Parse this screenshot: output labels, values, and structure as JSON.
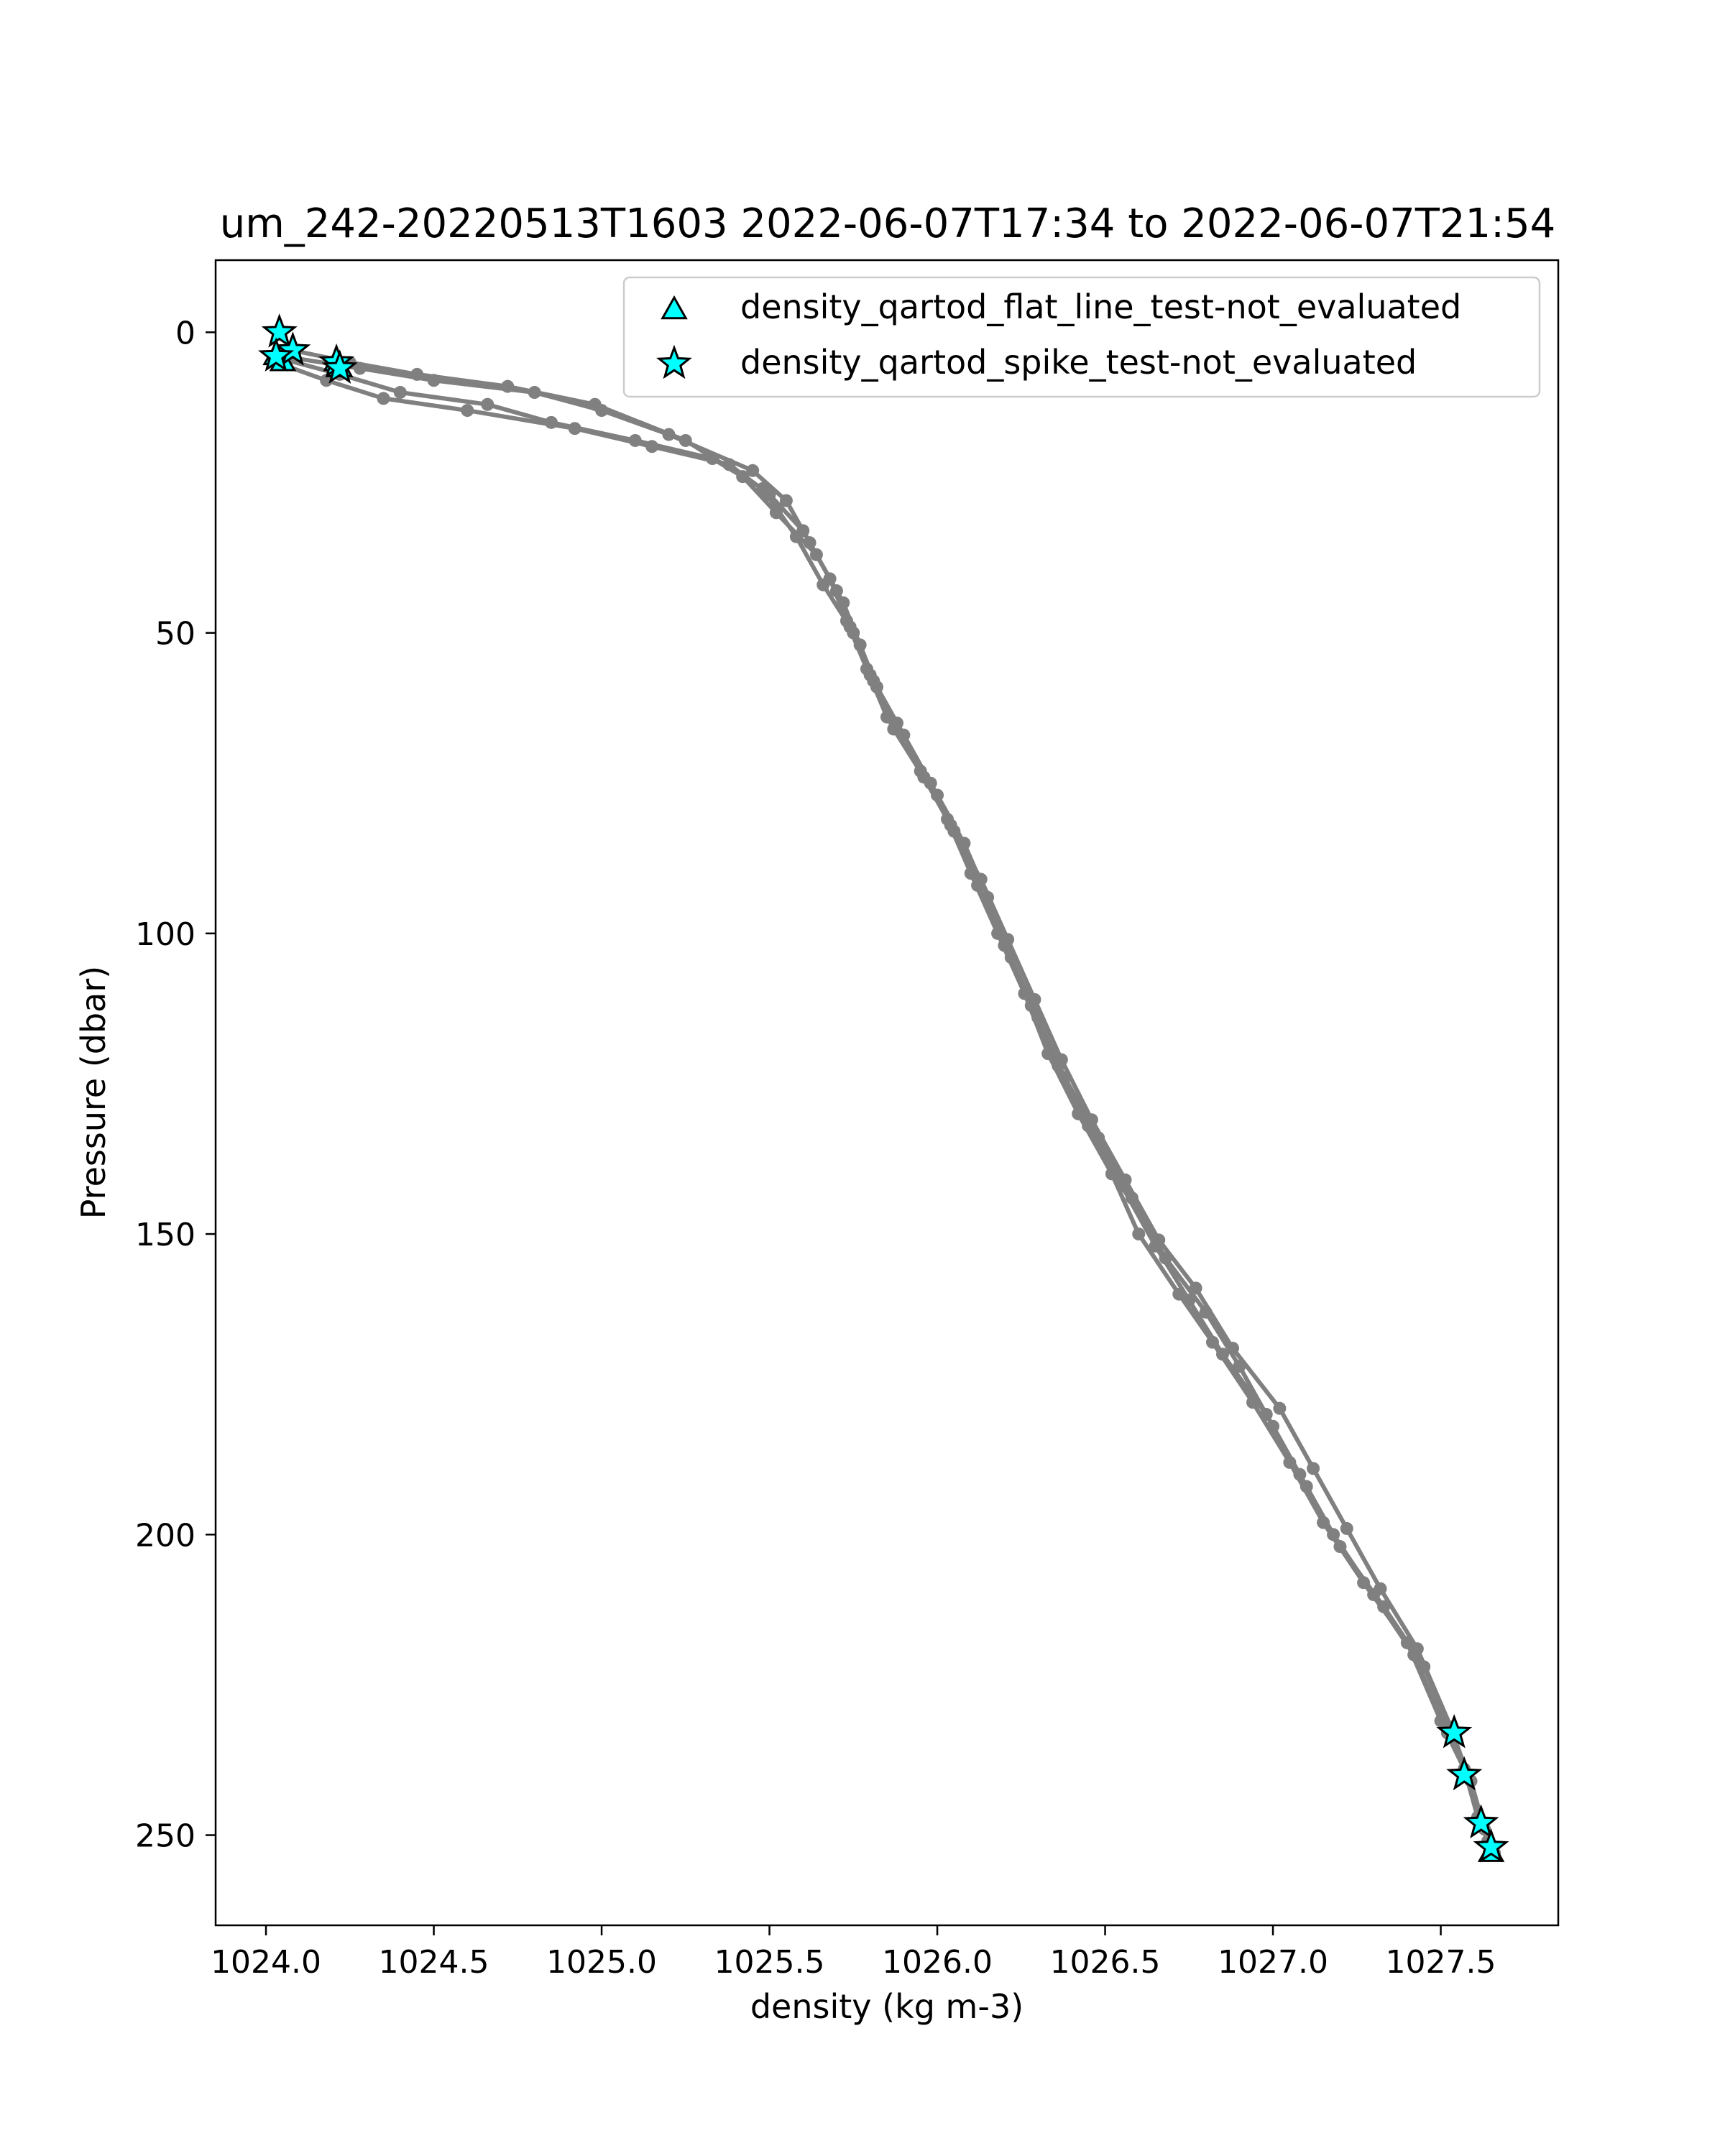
{
  "chart_data": {
    "type": "scatter",
    "title": "um_242-20220513T1603 2022-06-07T17:34 to 2022-06-07T21:54",
    "xlabel": "density (kg m-3)",
    "ylabel": "Pressure (dbar)",
    "xlim": [
      1023.85,
      1027.85
    ],
    "ylim": [
      265,
      -12
    ],
    "y_inverted": true,
    "grid": false,
    "legend_position": "upper-right",
    "xticks": [
      1024.0,
      1024.5,
      1025.0,
      1025.5,
      1026.0,
      1026.5,
      1027.0,
      1027.5
    ],
    "xtick_labels": [
      "1024.0",
      "1024.5",
      "1025.0",
      "1025.5",
      "1026.0",
      "1026.5",
      "1027.0",
      "1027.5"
    ],
    "yticks": [
      0,
      50,
      100,
      150,
      200,
      250
    ],
    "ytick_labels": [
      "0",
      "50",
      "100",
      "150",
      "200",
      "250"
    ],
    "colors": {
      "profile": "#808080",
      "flag_fill": "#00ffff",
      "flag_edge": "#000000"
    },
    "series": [
      {
        "kind": "profile",
        "x": [
          1024.05,
          1024.28,
          1024.5,
          1024.8,
          1025.0,
          1025.2,
          1025.45,
          1025.55,
          1025.62,
          1025.7,
          1025.75,
          1025.8,
          1025.88,
          1025.98,
          1026.05,
          1026.12,
          1026.2,
          1026.28,
          1026.36,
          1026.45,
          1026.55,
          1026.65,
          1026.75,
          1026.85,
          1026.98,
          1027.08,
          1027.18,
          1027.3,
          1027.42,
          1027.52,
          1027.58,
          1027.62,
          1027.65
        ],
        "y": [
          4,
          6,
          8,
          10,
          13,
          17,
          23,
          28,
          35,
          43,
          50,
          57,
          65,
          75,
          83,
          92,
          102,
          112,
          122,
          132,
          142,
          152,
          161,
          170,
          180,
          190,
          200,
          210,
          220,
          233,
          240,
          248,
          252
        ]
      },
      {
        "kind": "profile",
        "x": [
          1024.03,
          1024.18,
          1024.35,
          1024.6,
          1024.92,
          1025.15,
          1025.38,
          1025.5,
          1025.6,
          1025.68,
          1025.73,
          1025.79,
          1025.85,
          1025.95,
          1026.03,
          1026.1,
          1026.18,
          1026.26,
          1026.33,
          1026.42,
          1026.52,
          1026.6,
          1026.72,
          1026.82,
          1026.94,
          1027.05,
          1027.15,
          1027.27,
          1027.4,
          1027.5,
          1027.57,
          1027.61,
          1027.64
        ],
        "y": [
          5,
          8,
          11,
          13,
          16,
          19,
          22,
          27,
          33,
          41,
          48,
          56,
          64,
          73,
          81,
          90,
          100,
          110,
          120,
          130,
          140,
          150,
          160,
          168,
          178,
          188,
          198,
          208,
          218,
          231,
          239,
          247,
          251
        ]
      },
      {
        "kind": "profile",
        "x": [
          1024.08,
          1024.25,
          1024.45,
          1024.72,
          1024.98,
          1025.25,
          1025.42,
          1025.52,
          1025.64,
          1025.72,
          1025.77,
          1025.82,
          1025.9,
          1026.0,
          1026.08,
          1026.15,
          1026.22,
          1026.3,
          1026.38,
          1026.48,
          1026.58,
          1026.68,
          1026.8,
          1026.9,
          1027.0,
          1027.1,
          1027.2,
          1027.33,
          1027.45,
          1027.54,
          1027.59,
          1027.63,
          1027.66
        ],
        "y": [
          3,
          5,
          7,
          9,
          12,
          18,
          24,
          30,
          37,
          45,
          52,
          59,
          67,
          77,
          85,
          94,
          104,
          114,
          124,
          134,
          144,
          154,
          163,
          172,
          182,
          192,
          202,
          212,
          222,
          234,
          241,
          249,
          253
        ]
      },
      {
        "kind": "profile",
        "x": [
          1024.02,
          1024.22,
          1024.4,
          1024.66,
          1024.85,
          1025.1,
          1025.33,
          1025.48,
          1025.58,
          1025.66,
          1025.74,
          1025.81,
          1025.87,
          1025.96,
          1026.04,
          1026.13,
          1026.21,
          1026.29,
          1026.37,
          1026.46,
          1026.56,
          1026.66,
          1026.77,
          1026.88,
          1027.02,
          1027.12,
          1027.22,
          1027.32,
          1027.43,
          1027.53,
          1027.58,
          1027.62,
          1027.65
        ],
        "y": [
          4,
          7,
          10,
          12,
          15,
          18,
          21,
          26,
          34,
          42,
          49,
          58,
          66,
          74,
          82,
          91,
          101,
          111,
          121,
          131,
          141,
          151,
          159,
          169,
          179,
          189,
          199,
          209,
          219,
          232,
          240,
          248,
          252
        ]
      },
      {
        "name": "density_qartod_flat_line_test-not_evaluated",
        "kind": "flag",
        "marker": "triangle",
        "x": [
          1024.03,
          1024.05,
          1024.21,
          1024.22,
          1027.65
        ],
        "y": [
          4,
          5,
          5,
          6,
          253
        ]
      },
      {
        "name": "density_qartod_spike_test-not_evaluated",
        "kind": "flag",
        "marker": "star",
        "x": [
          1024.04,
          1024.08,
          1024.03,
          1024.21,
          1024.22,
          1027.54,
          1027.57,
          1027.62,
          1027.65
        ],
        "y": [
          0,
          3,
          4,
          5,
          6,
          233,
          240,
          248,
          252
        ]
      }
    ]
  }
}
